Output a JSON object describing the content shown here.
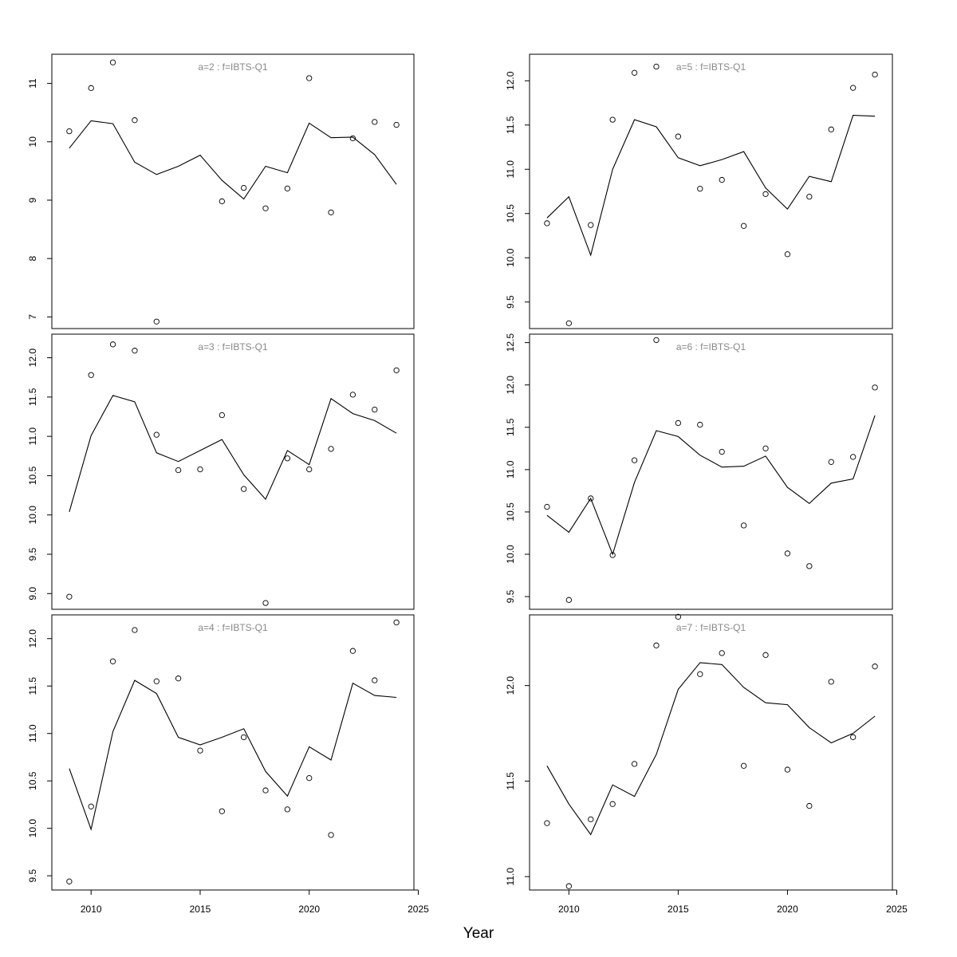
{
  "figure": {
    "xlabel": "Year",
    "colors": {
      "line": "#000000",
      "point": "#000000",
      "title": "#888888",
      "frame": "#000000"
    }
  },
  "chart_data": [
    {
      "type": "line",
      "title": "a=2 : f=IBTS-Q1",
      "x": [
        2009,
        2010,
        2011,
        2012,
        2013,
        2014,
        2015,
        2016,
        2017,
        2018,
        2019,
        2020,
        2021,
        2022,
        2023,
        2024
      ],
      "series": [
        {
          "role": "fitted",
          "values": [
            9.89,
            10.36,
            10.31,
            9.65,
            9.44,
            9.58,
            9.77,
            9.34,
            9.02,
            9.58,
            9.47,
            10.32,
            10.07,
            10.08,
            9.78,
            9.27
          ]
        },
        {
          "role": "observed",
          "values": [
            10.18,
            10.92,
            11.36,
            10.37,
            6.92,
            null,
            null,
            8.98,
            9.21,
            8.86,
            9.2,
            11.09,
            8.79,
            10.06,
            10.34,
            10.29
          ]
        }
      ],
      "ylim": [
        6.8,
        11.5
      ],
      "xlim": [
        2008.2,
        2024.8
      ],
      "yticks": [
        7,
        8,
        9,
        10,
        11
      ],
      "xticks": [],
      "grid": false,
      "legend": "none"
    },
    {
      "type": "line",
      "title": "a=5 : f=IBTS-Q1",
      "x": [
        2009,
        2010,
        2011,
        2012,
        2013,
        2014,
        2015,
        2016,
        2017,
        2018,
        2019,
        2020,
        2021,
        2022,
        2023,
        2024
      ],
      "series": [
        {
          "role": "fitted",
          "values": [
            10.45,
            10.69,
            10.03,
            11.0,
            11.56,
            11.48,
            11.13,
            11.04,
            11.11,
            11.2,
            10.79,
            10.55,
            10.92,
            10.86,
            11.61,
            11.6
          ]
        },
        {
          "role": "observed",
          "values": [
            10.39,
            9.26,
            10.37,
            11.56,
            12.09,
            12.16,
            11.37,
            10.78,
            10.88,
            10.36,
            10.72,
            10.04,
            10.69,
            11.45,
            11.92,
            12.07
          ]
        }
      ],
      "ylim": [
        9.2,
        12.3
      ],
      "xlim": [
        2008.2,
        2024.8
      ],
      "yticks": [
        9.5,
        10.0,
        10.5,
        11.0,
        11.5,
        12.0
      ],
      "xticks": [],
      "grid": false,
      "legend": "none"
    },
    {
      "type": "line",
      "title": "a=3 : f=IBTS-Q1",
      "x": [
        2009,
        2010,
        2011,
        2012,
        2013,
        2014,
        2015,
        2016,
        2017,
        2018,
        2019,
        2020,
        2021,
        2022,
        2023,
        2024
      ],
      "series": [
        {
          "role": "fitted",
          "values": [
            10.04,
            11.01,
            11.52,
            11.44,
            10.79,
            10.68,
            10.82,
            10.96,
            10.51,
            10.2,
            10.82,
            10.64,
            11.48,
            11.29,
            11.2,
            11.04
          ]
        },
        {
          "role": "observed",
          "values": [
            8.96,
            11.78,
            12.17,
            12.09,
            11.02,
            10.57,
            10.58,
            11.27,
            10.33,
            8.88,
            10.72,
            10.58,
            10.84,
            11.53,
            11.34,
            11.84
          ]
        }
      ],
      "ylim": [
        8.8,
        12.3
      ],
      "xlim": [
        2008.2,
        2024.8
      ],
      "yticks": [
        9.0,
        9.5,
        10.0,
        10.5,
        11.0,
        11.5,
        12.0
      ],
      "xticks": [],
      "grid": false,
      "legend": "none"
    },
    {
      "type": "line",
      "title": "a=6 : f=IBTS-Q1",
      "x": [
        2009,
        2010,
        2011,
        2012,
        2013,
        2014,
        2015,
        2016,
        2017,
        2018,
        2019,
        2020,
        2021,
        2022,
        2023,
        2024
      ],
      "series": [
        {
          "role": "fitted",
          "values": [
            10.46,
            10.26,
            10.66,
            10.0,
            10.85,
            11.46,
            11.39,
            11.17,
            11.03,
            11.04,
            11.16,
            10.79,
            10.6,
            10.84,
            10.89,
            11.64
          ]
        },
        {
          "role": "observed",
          "values": [
            10.56,
            9.46,
            10.66,
            9.99,
            11.11,
            12.53,
            11.55,
            11.53,
            11.21,
            10.34,
            11.25,
            10.01,
            9.86,
            11.09,
            11.15,
            11.97
          ]
        }
      ],
      "ylim": [
        9.35,
        12.6
      ],
      "xlim": [
        2008.2,
        2024.8
      ],
      "yticks": [
        9.5,
        10.0,
        10.5,
        11.0,
        11.5,
        12.0,
        12.5
      ],
      "xticks": [],
      "grid": false,
      "legend": "none"
    },
    {
      "type": "line",
      "title": "a=4 : f=IBTS-Q1",
      "x": [
        2009,
        2010,
        2011,
        2012,
        2013,
        2014,
        2015,
        2016,
        2017,
        2018,
        2019,
        2020,
        2021,
        2022,
        2023,
        2024
      ],
      "series": [
        {
          "role": "fitted",
          "values": [
            10.63,
            9.99,
            11.02,
            11.56,
            11.42,
            10.96,
            10.88,
            10.96,
            11.05,
            10.6,
            10.34,
            10.86,
            10.72,
            11.53,
            11.4,
            11.38
          ]
        },
        {
          "role": "observed",
          "values": [
            9.44,
            10.23,
            11.76,
            12.09,
            11.55,
            11.58,
            10.82,
            10.18,
            10.96,
            10.4,
            10.2,
            10.53,
            9.93,
            11.87,
            11.56,
            12.17
          ]
        }
      ],
      "ylim": [
        9.35,
        12.25
      ],
      "xlim": [
        2008.2,
        2024.8
      ],
      "yticks": [
        9.5,
        10.0,
        10.5,
        11.0,
        11.5,
        12.0
      ],
      "xticks": [
        2010,
        2015,
        2020,
        2025
      ],
      "grid": false,
      "legend": "none"
    },
    {
      "type": "line",
      "title": "a=7 : f=IBTS-Q1",
      "x": [
        2009,
        2010,
        2011,
        2012,
        2013,
        2014,
        2015,
        2016,
        2017,
        2018,
        2019,
        2020,
        2021,
        2022,
        2023,
        2024
      ],
      "series": [
        {
          "role": "fitted",
          "values": [
            11.58,
            11.38,
            11.22,
            11.48,
            11.42,
            11.64,
            11.98,
            12.12,
            12.11,
            11.99,
            11.91,
            11.9,
            11.78,
            11.7,
            11.75,
            11.84
          ]
        },
        {
          "role": "observed",
          "values": [
            11.28,
            10.95,
            11.3,
            11.38,
            11.59,
            12.21,
            12.36,
            12.06,
            12.17,
            11.58,
            12.16,
            11.56,
            11.37,
            12.02,
            11.73,
            12.1
          ]
        }
      ],
      "ylim": [
        10.93,
        12.37
      ],
      "xlim": [
        2008.2,
        2024.8
      ],
      "yticks": [
        11.0,
        11.5,
        12.0
      ],
      "xticks": [
        2010,
        2015,
        2020,
        2025
      ],
      "grid": false,
      "legend": "none"
    }
  ]
}
